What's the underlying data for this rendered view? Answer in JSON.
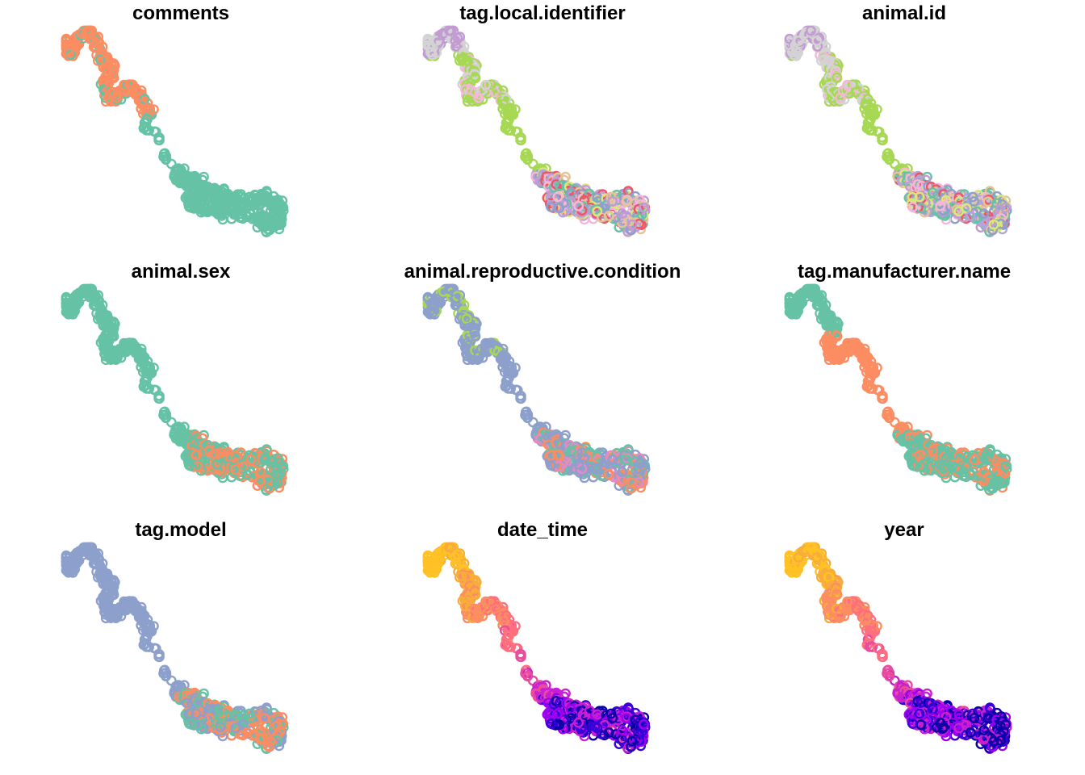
{
  "chart_data": {
    "type": "scatter",
    "track_path": [
      [
        0,
        0.05
      ],
      [
        0.02,
        0.12
      ],
      [
        0.05,
        0.03
      ],
      [
        0.1,
        0.0
      ],
      [
        0.16,
        0.13
      ],
      [
        0.2,
        0.2
      ],
      [
        0.17,
        0.28
      ],
      [
        0.2,
        0.35
      ],
      [
        0.28,
        0.27
      ],
      [
        0.33,
        0.33
      ],
      [
        0.36,
        0.42
      ],
      [
        0.34,
        0.49
      ],
      [
        0.4,
        0.5
      ],
      [
        0.43,
        0.62
      ],
      [
        0.48,
        0.69
      ],
      [
        0.52,
        0.74
      ],
      [
        0.57,
        0.76
      ],
      [
        0.63,
        0.8
      ],
      [
        0.7,
        0.83
      ],
      [
        0.78,
        0.85
      ],
      [
        0.88,
        0.83
      ],
      [
        0.93,
        0.87
      ],
      [
        0.92,
        0.97
      ],
      [
        0.83,
        0.93
      ],
      [
        0.68,
        0.89
      ],
      [
        0.58,
        0.86
      ],
      [
        0.55,
        0.84
      ]
    ],
    "panels": [
      {
        "title": "comments",
        "palette": [
          "#fc8d62",
          "#66c2a5"
        ],
        "mode": "split",
        "cut": 0.42
      },
      {
        "title": "tag.local.identifier",
        "palette": [
          "#d3d3d3",
          "#a6d854",
          "#f4b7d8",
          "#c39bd3",
          "#ee5566",
          "#8da0cb",
          "#66c2a5",
          "#b3a4da",
          "#e5c494",
          "#dbe877"
        ],
        "mode": "groups"
      },
      {
        "title": "animal.id",
        "palette": [
          "#d3d3d3",
          "#a6d854",
          "#f4b7d8",
          "#c39bd3",
          "#ee5566",
          "#8da0cb",
          "#66c2a5",
          "#b3a4da",
          "#e5c494",
          "#dbe877"
        ],
        "mode": "groups"
      },
      {
        "title": "animal.sex",
        "palette": [
          "#66c2a5",
          "#fc8d62"
        ],
        "mode": "mostly",
        "minor_share": 0.18
      },
      {
        "title": "animal.reproductive.condition",
        "palette": [
          "#8da0cb",
          "#a6d854",
          "#fc8d62",
          "#e78ac3",
          "#66c2a5"
        ],
        "mode": "cond"
      },
      {
        "title": "tag.manufacturer.name",
        "palette": [
          "#66c2a5",
          "#fc8d62"
        ],
        "mode": "manu"
      },
      {
        "title": "tag.model",
        "palette": [
          "#8da0cb",
          "#fc8d62",
          "#66c2a5"
        ],
        "mode": "model"
      },
      {
        "title": "date_time",
        "palette": [
          "#ffc125",
          "#f7ad3a",
          "#fc8d62",
          "#ff6e7f",
          "#e74c9e",
          "#c71fd2",
          "#9c00f0",
          "#3a00d9",
          "#0b00a3"
        ],
        "mode": "gradient"
      },
      {
        "title": "year",
        "palette": [
          "#ffc125",
          "#f7ad3a",
          "#fc8d62",
          "#ff6e7f",
          "#e74c9e",
          "#c71fd2",
          "#9c00f0",
          "#3a00d9",
          "#0b00a3"
        ],
        "mode": "gradient"
      }
    ]
  }
}
